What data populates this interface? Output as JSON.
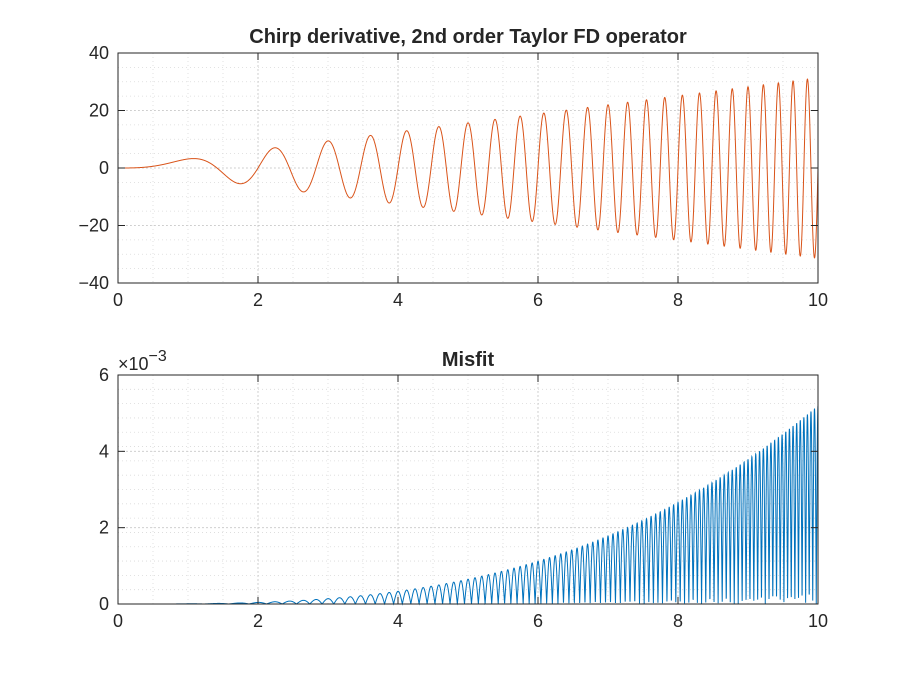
{
  "figure_bg": "#ffffff",
  "chart_data": [
    {
      "type": "line",
      "title": "Chirp derivative, 2nd order Taylor FD operator",
      "xlabel": "",
      "ylabel": "",
      "xlim": [
        0,
        10
      ],
      "ylim": [
        -40,
        40
      ],
      "xticks": [
        "0",
        "2",
        "4",
        "6",
        "8",
        "10"
      ],
      "yticks": [
        "40",
        "20",
        "0",
        "−20",
        "−40"
      ],
      "xtick_values": [
        0,
        2,
        4,
        6,
        8,
        10
      ],
      "ytick_values": [
        40,
        20,
        0,
        -20,
        -40
      ],
      "grid": true,
      "minor_grid": true,
      "line_color": "#D95319",
      "series": [
        {
          "function": "y = d/dt sin(pi*t^2) = 2*pi*t*cos(pi*t^2)",
          "x_range": [
            0,
            10
          ],
          "amplitude_at_x10": 31.4,
          "zero_crossings_at_x2": true
        }
      ]
    },
    {
      "type": "line",
      "title": "Misfit",
      "xlabel": "",
      "ylabel": "",
      "xlim": [
        0,
        10
      ],
      "ylim": [
        0,
        0.006
      ],
      "exponent_label": "×10",
      "exponent_power": "−3",
      "xticks": [
        "0",
        "2",
        "4",
        "6",
        "8",
        "10"
      ],
      "yticks": [
        "6",
        "4",
        "2",
        "0"
      ],
      "xtick_values": [
        0,
        2,
        4,
        6,
        8,
        10
      ],
      "ytick_values": [
        0.006,
        0.004,
        0.002,
        0
      ],
      "grid": true,
      "minor_grid": true,
      "line_color": "#0072BD",
      "series": [
        {
          "function": "misfit = |error of 2nd order FD derivative|, envelope growing ~t^3",
          "x_range": [
            0,
            10
          ],
          "peak_at_x10": 0.0052
        }
      ]
    }
  ]
}
